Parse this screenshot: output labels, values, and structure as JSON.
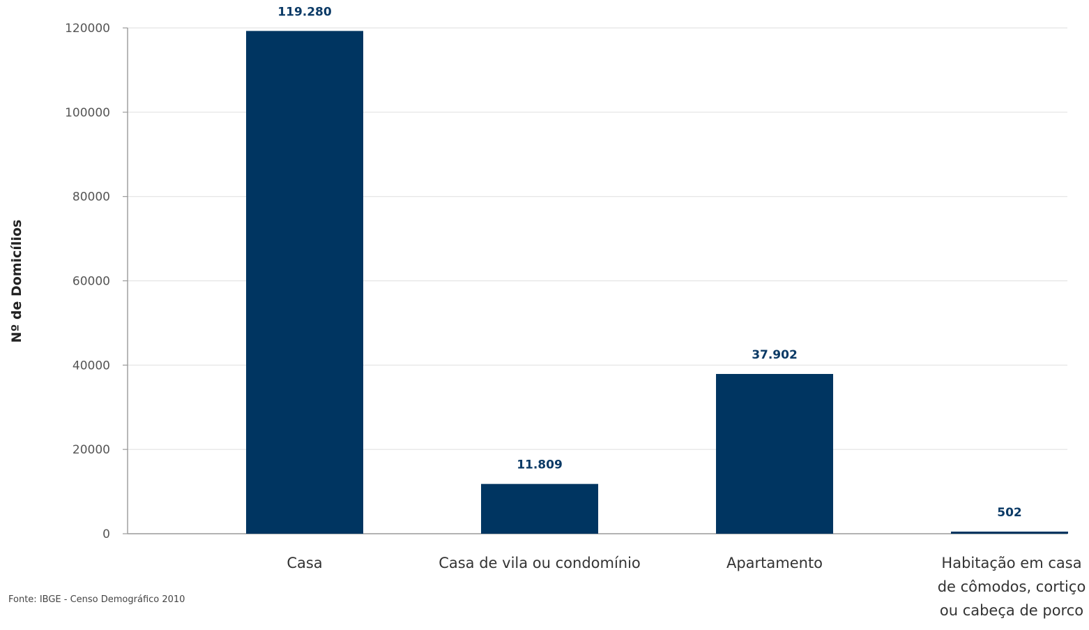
{
  "chart_data": {
    "type": "bar",
    "title": "",
    "xlabel": "",
    "ylabel": "Nº de Domicílios",
    "categories": [
      [
        "Casa"
      ],
      [
        "Casa de vila ou condomínio"
      ],
      [
        "Apartamento"
      ],
      [
        "Habitação em casa",
        "de cômodos, cortiço",
        "ou cabeça de porco"
      ]
    ],
    "values": [
      119280,
      11809,
      37902,
      502
    ],
    "data_labels": [
      "119.280",
      "11.809",
      "37.902",
      "502"
    ],
    "ylim": [
      0,
      120000
    ],
    "yticks": [
      "0",
      "20000",
      "40000",
      "60000",
      "80000",
      "100000",
      "120000"
    ],
    "grid": true,
    "legend": "none"
  },
  "source_note": "Fonte: IBGE - Censo Demográfico 2010",
  "colors": {
    "bar": "#003561",
    "data_label": "#0b3a66",
    "grid": "#e3e3e3",
    "axis": "#9a9a9a"
  }
}
